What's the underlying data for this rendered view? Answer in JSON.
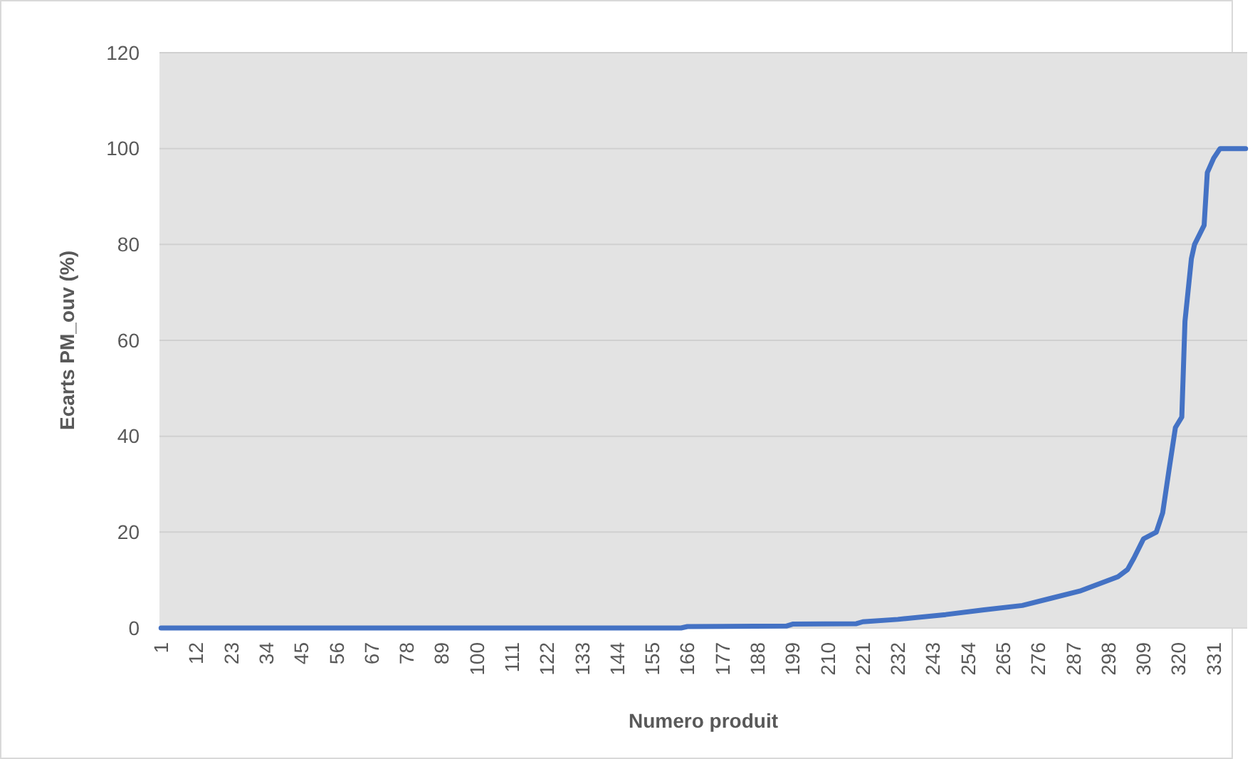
{
  "chart_data": {
    "type": "line",
    "xlabel": "Numero produit",
    "ylabel": "Ecarts PM_ouv (%)",
    "xlim": [
      0.5,
      341.5
    ],
    "xticks": [
      1,
      12,
      23,
      34,
      45,
      56,
      67,
      78,
      89,
      100,
      111,
      122,
      133,
      144,
      155,
      166,
      177,
      188,
      199,
      210,
      221,
      232,
      243,
      254,
      265,
      276,
      287,
      298,
      309,
      320,
      331
    ],
    "ylim": [
      0,
      120
    ],
    "yticks": [
      0,
      20,
      40,
      60,
      80,
      100,
      120
    ],
    "grid": "y",
    "marker": "none",
    "line_style": "solid",
    "series": [
      {
        "color": "#4472c4",
        "x": [
          1,
          164,
          166,
          197,
          199,
          219,
          221,
          232,
          247,
          259,
          271,
          280,
          289,
          297,
          301,
          304,
          306,
          309,
          313,
          315,
          317,
          319,
          321,
          322,
          324,
          325,
          328,
          329,
          331,
          333,
          341
        ],
        "values": [
          0,
          0,
          0.3,
          0.4,
          0.8,
          0.9,
          1.3,
          1.8,
          2.8,
          3.8,
          4.7,
          6.2,
          7.7,
          9.7,
          10.7,
          12.2,
          14.6,
          18.6,
          20,
          24,
          33,
          41.8,
          44,
          64,
          77,
          80,
          84,
          95,
          98,
          100,
          100
        ]
      }
    ]
  }
}
